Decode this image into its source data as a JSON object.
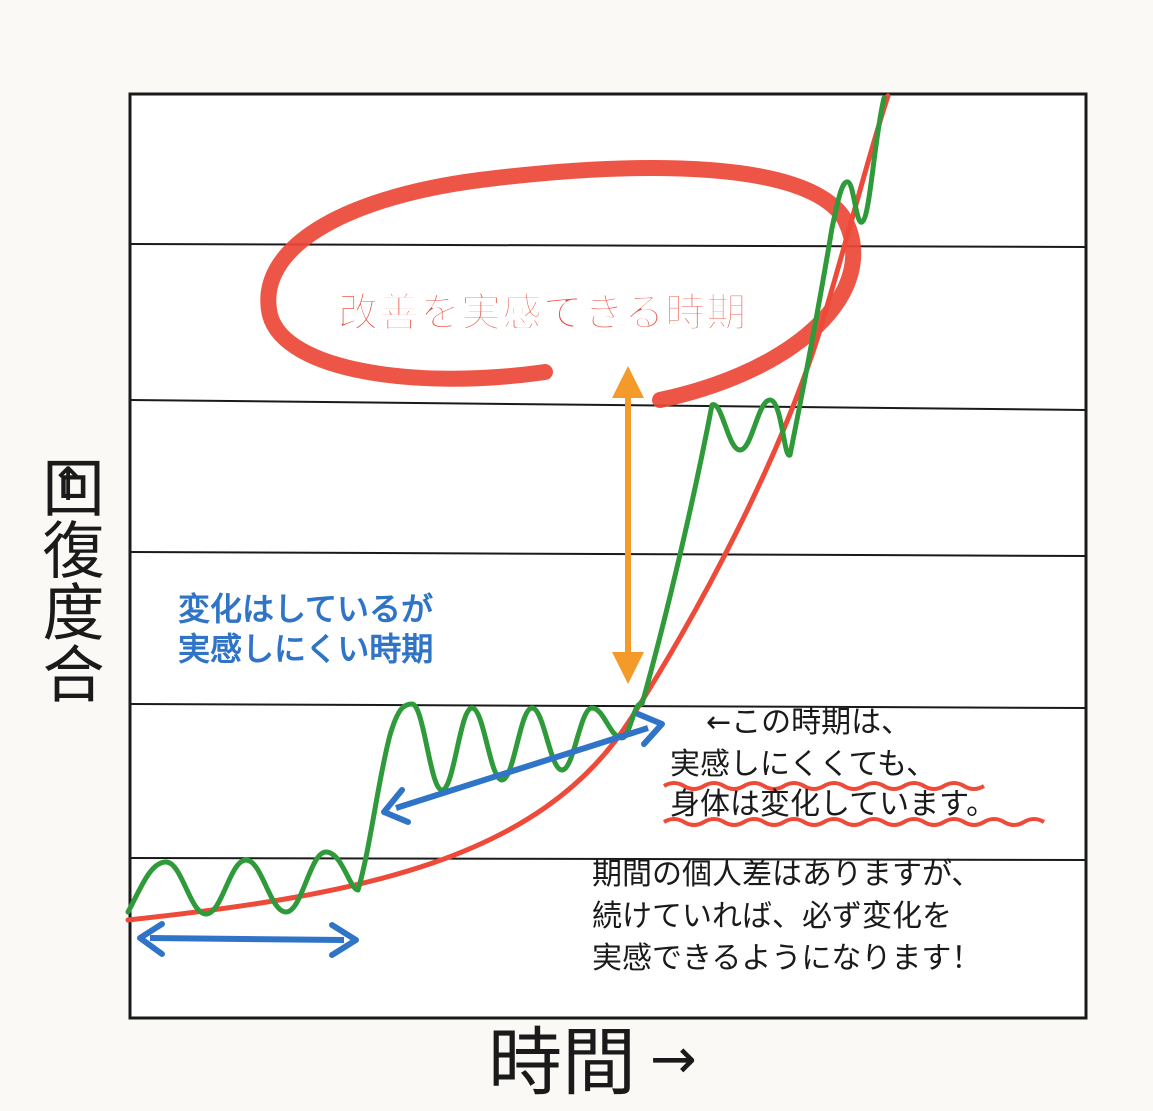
{
  "y_axis": {
    "arrow": "↑",
    "label": "回復度合"
  },
  "x_axis": {
    "label": "時間",
    "arrow": "→"
  },
  "annotations": {
    "improvement_period": "改善を実感できる時期",
    "hidden_change": [
      "変化はしているが",
      "実感しにくい時期"
    ],
    "note": [
      "←この時期は、",
      "実感しにくくても、",
      "身体は変化しています。"
    ],
    "conclusion": [
      "期間の個人差はありますが、",
      "続けていれば、必ず変化を",
      "実感できるようになります！"
    ]
  },
  "colors": {
    "frame": "#1a1a1a",
    "red_curve": "#ee4a3a",
    "green_line": "#2e9a3a",
    "blue_text": "#2f74c6",
    "blue_arrow": "#2f74c6",
    "orange_arrow": "#f49a2a",
    "red_ellipse": "#ec4636",
    "improvement_text": "#e8483a",
    "underline": "#ee4a3a"
  }
}
